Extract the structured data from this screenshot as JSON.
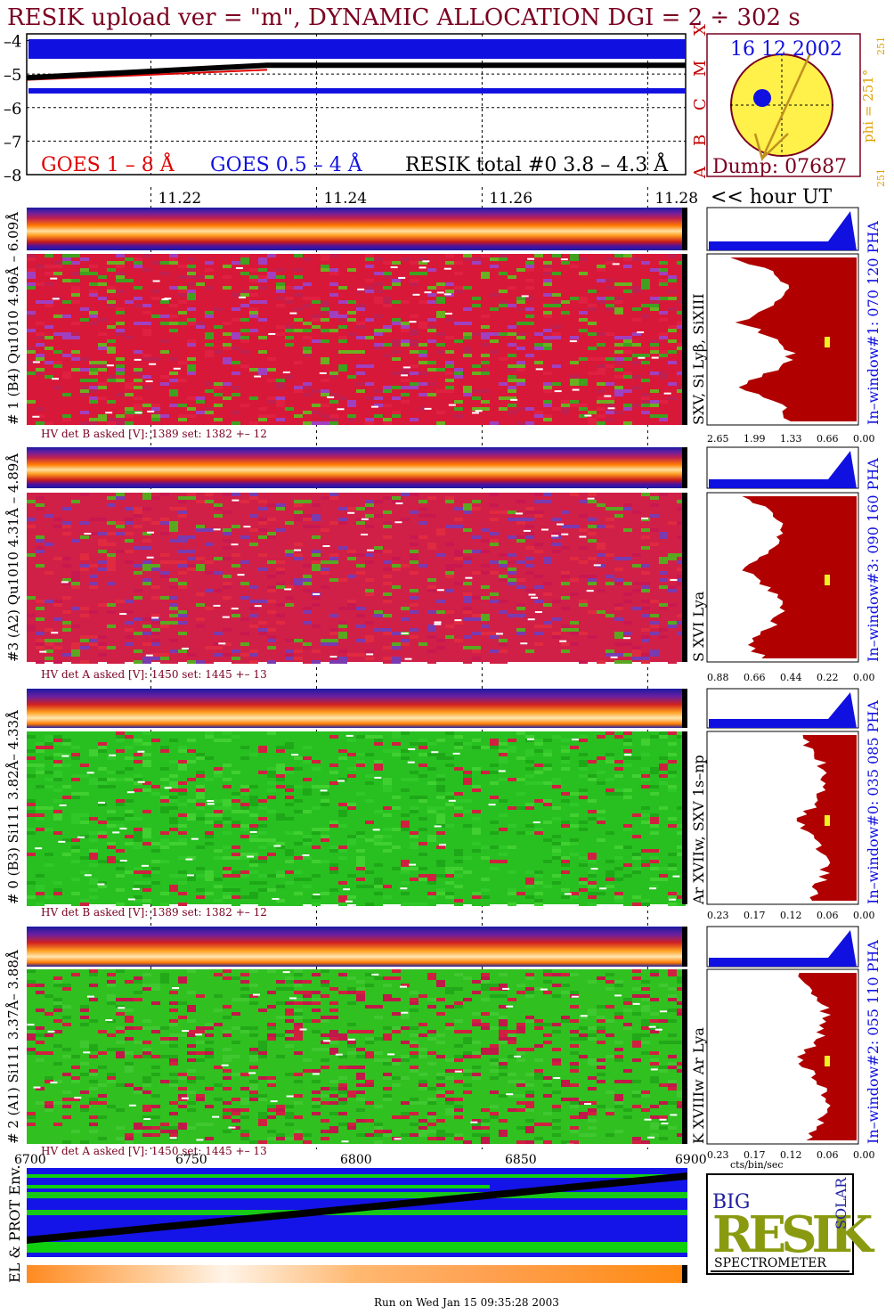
{
  "header": {
    "title": "RESIK upload ver = \"m\", DYNAMIC ALLOCATION  DGI =   2 ÷ 302 s"
  },
  "goes": {
    "legend_goes18": "GOES 1 – 8 Å",
    "legend_goes054": "GOES 0.5 – 4 Å",
    "legend_resik": "RESIK total #0  3.8 – 4.3 Å",
    "flare_classes": [
      "X",
      "M",
      "C",
      "B",
      "A"
    ],
    "colors": {
      "goes18": "#e00000",
      "goes054": "#1010e0",
      "resik": "#000000"
    }
  },
  "sun": {
    "date": "16 12 2002",
    "dump": "Dump: 07687",
    "phi": "phi = 251°",
    "phi_sup": "251",
    "phi_bottom": "251"
  },
  "time_axis": {
    "ticks": [
      "11.22",
      "11.24",
      "11.26",
      "11.28"
    ],
    "unit_label": "<< hour UT"
  },
  "panels": [
    {
      "left_label": "# 1 (B4) Qu1010 4.96Å – 6.09Å",
      "line_label": "SXV, Si Lyβ, SiXIII",
      "hv_label": "HV det B asked [V]:  1389 set:  1382 +–   12",
      "pha_label": "In–window#1:  070 120 PHA",
      "hist_ticks": [
        "2.65",
        "1.99",
        "1.33",
        "0.66",
        "0.00"
      ]
    },
    {
      "left_label": "#3 (A2) Qu1010  4.31Å – 4.89Å",
      "line_label": "S XVI Lya",
      "hv_label": "HV det A asked [V]:  1450 set:  1445 +–   13",
      "pha_label": "In–window#3:  090 160 PHA",
      "hist_ticks": [
        "0.88",
        "0.66",
        "0.44",
        "0.22",
        "0.00"
      ]
    },
    {
      "left_label": "# 0 (B3) Si111  3.82Å– 4.33Å",
      "line_label": "Ar XVIIw,  SXV 1s–np",
      "hv_label": "HV det B asked [V]:  1389 set:  1382 +–   12",
      "pha_label": "In–window#0:  035 085 PHA",
      "hist_ticks": [
        "0.23",
        "0.17",
        "0.12",
        "0.06",
        "0.00"
      ]
    },
    {
      "left_label": "# 2 (A1) Si111  3.37Å– 3.88Å",
      "line_label": "K XVIIIw  Ar Lya",
      "hv_label": "HV det A asked [V]:  1450 set:  1445 +–   13",
      "pha_label": "In–window#2:  055 110 PHA",
      "hist_ticks": [
        "0.23",
        "0.17",
        "0.12",
        "0.06",
        "0.00"
      ]
    }
  ],
  "hist_xlabel": "cts/bin/sec",
  "env": {
    "label": "EL & PROT Env.",
    "ticks": [
      "6700",
      "6750",
      "6800",
      "6850",
      "6900"
    ]
  },
  "logo": {
    "letters": "RESIK",
    "big": "BIG",
    "solar": "SOLAR",
    "caption": "SPECTROMETER"
  },
  "footer": "Run on Wed Jan 15 09:35:28 2003",
  "chart_data": {
    "type": "line",
    "title": "RESIK upload ver = \"m\", DYNAMIC ALLOCATION  DGI =   2 ÷ 302 s",
    "ylabel": "",
    "yticks": [
      -4,
      -5,
      -6,
      -7,
      -8
    ],
    "ylim": [
      -8,
      -3.8
    ],
    "xlabel": "<< hour UT",
    "x": [
      11.205,
      11.28
    ],
    "series": [
      {
        "name": "GOES 1 – 8 Å",
        "values": [
          -4.8,
          -4.5
        ]
      },
      {
        "name": "GOES 0.5 – 4 Å",
        "values": [
          -5.5,
          -5.5
        ]
      },
      {
        "name": "RESIK total #0  3.8 – 4.3 Å",
        "values": [
          -4.95,
          -4.55
        ]
      }
    ]
  }
}
